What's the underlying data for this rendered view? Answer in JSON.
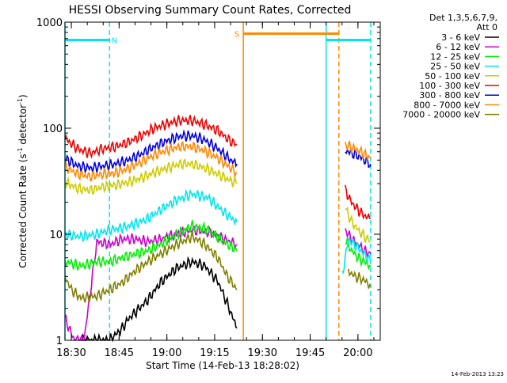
{
  "chart_data": {
    "type": "line",
    "title": "HESSI Observing Summary Count Rates, Corrected",
    "xlabel": "Start Time (14-Feb-13 18:28:02)",
    "ylabel": "Corrected Count Rate (s⁻¹ detector⁻¹)",
    "ylabel_main": "Corrected Count Rate (s",
    "ylabel_mid": " detector",
    "ylabel_end": ")",
    "ylabel_sup": "-1",
    "yscale": "log",
    "xlim_minutes_after_1828": [
      0,
      99
    ],
    "ylim": [
      1,
      1000
    ],
    "x_ticks": [
      {
        "label": "18:30",
        "minute": 2
      },
      {
        "label": "18:45",
        "minute": 17
      },
      {
        "label": "19:00",
        "minute": 32
      },
      {
        "label": "19:15",
        "minute": 47
      },
      {
        "label": "19:30",
        "minute": 62
      },
      {
        "label": "19:45",
        "minute": 77
      },
      {
        "label": "20:00",
        "minute": 92
      }
    ],
    "y_ticks": [
      {
        "label": "1",
        "value": 1
      },
      {
        "label": "10",
        "value": 10
      },
      {
        "label": "100",
        "value": 100
      },
      {
        "label": "1000",
        "value": 1000
      }
    ],
    "legend": {
      "position": "top-right",
      "header1": "Det 1,3,5,6,7,9,",
      "header2": "Att 0"
    },
    "series": [
      {
        "name": "3 - 6 keV",
        "color": "#000000",
        "segments": [
          {
            "minutes": [
              5,
              10,
              14,
              18,
              20,
              26,
              30,
              35,
              40,
              44,
              48,
              51,
              54
            ],
            "values": [
              1.0,
              1.0,
              1.0,
              1.3,
              1.6,
              2.4,
              3.5,
              4.8,
              5.5,
              5.0,
              3.6,
              2.2,
              1.3
            ]
          }
        ]
      },
      {
        "name": "6 - 12 keV",
        "color": "#cc00cc",
        "segments": [
          {
            "minutes": [
              0,
              3,
              6,
              10,
              14,
              18,
              22,
              26,
              30,
              35,
              40,
              45,
              50,
              54
            ],
            "values": [
              1.6,
              1.0,
              1.0,
              8.5,
              8.0,
              9.0,
              9.0,
              8.5,
              9.0,
              10.0,
              11.0,
              10.5,
              9.0,
              8.0
            ]
          },
          {
            "minutes": [
              88,
              90,
              92,
              94,
              96
            ],
            "values": [
              11.0,
              9.0,
              8.0,
              7.0,
              6.5
            ]
          }
        ]
      },
      {
        "name": "12 - 25 keV",
        "color": "#00ee00",
        "segments": [
          {
            "minutes": [
              0,
              5,
              10,
              14,
              18,
              22,
              26,
              30,
              35,
              40,
              45,
              50,
              54
            ],
            "values": [
              5.5,
              5.0,
              5.5,
              5.5,
              6.0,
              6.5,
              7.0,
              8.0,
              10.0,
              12.0,
              11.0,
              8.5,
              7.0
            ]
          },
          {
            "minutes": [
              88,
              90,
              92,
              94,
              96
            ],
            "values": [
              9.0,
              7.0,
              6.0,
              5.5,
              5.0
            ]
          }
        ]
      },
      {
        "name": "25 - 50 keV",
        "color": "#00e5ee",
        "segments": [
          {
            "minutes": [
              0,
              5,
              10,
              14,
              18,
              22,
              26,
              30,
              35,
              40,
              45,
              50,
              54
            ],
            "values": [
              10.0,
              9.5,
              10.0,
              11.0,
              11.5,
              12.5,
              14.0,
              17.0,
              21.0,
              24.0,
              22.0,
              16.0,
              13.0
            ]
          },
          {
            "minutes": [
              87,
              89,
              91,
              93,
              95,
              96
            ],
            "values": [
              4.0,
              9.0,
              8.0,
              7.0,
              6.0,
              5.5
            ]
          }
        ]
      },
      {
        "name": "50 - 100 keV",
        "color": "#cccc00",
        "segments": [
          {
            "minutes": [
              0,
              4,
              8,
              12,
              16,
              20,
              24,
              28,
              32,
              36,
              40,
              44,
              48,
              52,
              54
            ],
            "values": [
              31.0,
              27.0,
              26.0,
              28.0,
              29.0,
              31.0,
              34.0,
              38.0,
              42.0,
              46.0,
              46.0,
              42.0,
              37.0,
              32.0,
              30.0
            ]
          },
          {
            "minutes": [
              88,
              90,
              92,
              94,
              96
            ],
            "values": [
              18.0,
              13.0,
              11.0,
              9.5,
              8.5
            ]
          }
        ]
      },
      {
        "name": "100 - 300 keV",
        "color": "#ee0000",
        "segments": [
          {
            "minutes": [
              0,
              4,
              8,
              12,
              16,
              20,
              24,
              28,
              32,
              36,
              40,
              44,
              48,
              52,
              54
            ],
            "values": [
              80.0,
              64.0,
              58.0,
              64.0,
              67.0,
              74.0,
              85.0,
              100.0,
              110.0,
              118.0,
              118.0,
              108.0,
              95.0,
              75.0,
              70.0
            ]
          },
          {
            "minutes": [
              88,
              90,
              92,
              94,
              96
            ],
            "values": [
              26.0,
              20.0,
              17.0,
              15.0,
              14.0
            ]
          }
        ]
      },
      {
        "name": "300 - 800 keV",
        "color": "#0000dd",
        "segments": [
          {
            "minutes": [
              0,
              4,
              8,
              12,
              16,
              20,
              24,
              28,
              32,
              36,
              40,
              44,
              48,
              52,
              54
            ],
            "values": [
              52.0,
              44.0,
              42.0,
              44.0,
              46.0,
              50.0,
              57.0,
              67.0,
              76.0,
              84.0,
              85.0,
              77.0,
              64.0,
              50.0,
              46.0
            ]
          },
          {
            "minutes": [
              88,
              90,
              92,
              94,
              96
            ],
            "values": [
              62.0,
              58.0,
              55.0,
              50.0,
              46.0
            ]
          }
        ]
      },
      {
        "name": "800 - 7000 keV",
        "color": "#ff8800",
        "segments": [
          {
            "minutes": [
              0,
              4,
              8,
              12,
              16,
              20,
              24,
              28,
              32,
              36,
              40,
              44,
              48,
              52,
              54
            ],
            "values": [
              43.0,
              37.0,
              35.0,
              37.0,
              38.0,
              42.0,
              48.0,
              56.0,
              62.0,
              67.0,
              67.0,
              61.0,
              52.0,
              42.0,
              38.0
            ]
          },
          {
            "minutes": [
              88,
              90,
              92,
              94,
              96
            ],
            "values": [
              70.0,
              66.0,
              62.0,
              57.0,
              52.0
            ]
          }
        ]
      },
      {
        "name": "7000 - 20000 keV",
        "color": "#808000",
        "segments": [
          {
            "minutes": [
              0,
              2,
              5,
              10,
              14,
              18,
              22,
              26,
              30,
              35,
              40,
              44,
              48,
              51,
              54
            ],
            "values": [
              4.0,
              3.0,
              2.5,
              2.6,
              3.0,
              3.5,
              4.5,
              5.5,
              6.5,
              8.0,
              9.5,
              8.0,
              6.0,
              4.0,
              3.0
            ]
          },
          {
            "minutes": [
              89,
              91,
              93,
              95,
              96
            ],
            "values": [
              4.5,
              4.0,
              3.8,
              3.5,
              3.2
            ]
          }
        ]
      }
    ],
    "annotations": [
      {
        "type": "vline",
        "minute": 0,
        "color": "#00e5ee",
        "style": "solid"
      },
      {
        "type": "vline",
        "minute": 14,
        "color": "#00e5ee",
        "style": "dashed"
      },
      {
        "type": "vline",
        "minute": 56,
        "color": "#ff8800",
        "style": "solid"
      },
      {
        "type": "vline",
        "minute": 82,
        "color": "#00e5ee",
        "style": "solid"
      },
      {
        "type": "vline",
        "minute": 86,
        "color": "#ff8800",
        "style": "dashed"
      },
      {
        "type": "vline",
        "minute": 96,
        "color": "#00e5ee",
        "style": "dashed"
      },
      {
        "type": "hbar",
        "from": 0,
        "to": 14,
        "value": 680,
        "color": "#00e5ee",
        "label": "N",
        "label_minute": 15.5
      },
      {
        "type": "hbar",
        "from": 56,
        "to": 86,
        "value": 780,
        "color": "#ff8800",
        "label": "S",
        "label_minute": 54
      },
      {
        "type": "hbar",
        "from": 82,
        "to": 96,
        "value": 680,
        "color": "#00e5ee"
      }
    ]
  },
  "footer_timestamp": "14-Feb-2013 13:23"
}
